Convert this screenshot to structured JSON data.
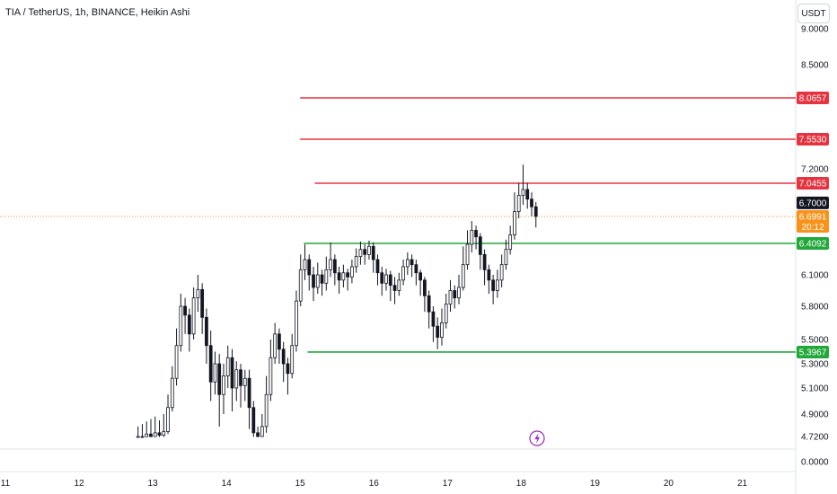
{
  "header": {
    "title": "TIA / TetherUS, 1h, BINANCE, Heikin Ashi"
  },
  "toolbar": {
    "currency_label": "USDT"
  },
  "chart_data": {
    "type": "candlestick",
    "title": "TIA / TetherUS, 1h, BINANCE, Heikin Ashi",
    "x_ticks": [
      11,
      12,
      13,
      14,
      15,
      16,
      17,
      18,
      19,
      20,
      21
    ],
    "x_range": [
      11,
      21.9
    ],
    "y_ticks": [
      "9.0000",
      "8.5000",
      "7.2000",
      "6.1000",
      "5.8000",
      "5.5000",
      "5.3000",
      "5.1000",
      "4.9000",
      "4.7200",
      "0.0000"
    ],
    "horizontal_levels": [
      {
        "value": "8.0657",
        "color": "#e5333f",
        "x_start": 15.0
      },
      {
        "value": "7.5530",
        "color": "#e5333f",
        "x_start": 15.0
      },
      {
        "value": "7.0455",
        "color": "#e5333f",
        "x_start": 15.2
      },
      {
        "value": "6.4092",
        "color": "#22a83a",
        "x_start": 15.05
      },
      {
        "value": "5.3967",
        "color": "#22a83a",
        "x_start": 15.1
      }
    ],
    "current": {
      "price": "6.6991",
      "countdown": "20:12",
      "color": "#f7931a"
    },
    "last_close": {
      "price": "6.7000",
      "color": "#131722"
    },
    "candles_first_x": 12.8,
    "candles_last_x": 18.2,
    "candles": [
      [
        4.7,
        4.72,
        4.62,
        4.8
      ],
      [
        4.72,
        4.69,
        4.6,
        4.82
      ],
      [
        4.69,
        4.74,
        4.62,
        4.84
      ],
      [
        4.74,
        4.71,
        4.6,
        4.86
      ],
      [
        4.71,
        4.75,
        4.64,
        4.88
      ],
      [
        4.75,
        4.73,
        4.63,
        4.85
      ],
      [
        4.73,
        4.76,
        4.66,
        4.9
      ],
      [
        4.76,
        4.95,
        4.74,
        5.05
      ],
      [
        4.95,
        5.18,
        4.92,
        5.28
      ],
      [
        5.18,
        5.45,
        5.12,
        5.6
      ],
      [
        5.45,
        5.8,
        5.4,
        5.92
      ],
      [
        5.8,
        5.72,
        5.55,
        5.88
      ],
      [
        5.72,
        5.55,
        5.4,
        5.78
      ],
      [
        5.55,
        5.88,
        5.5,
        5.98
      ],
      [
        5.88,
        5.96,
        5.75,
        6.1
      ],
      [
        5.96,
        5.7,
        5.55,
        6.02
      ],
      [
        5.7,
        5.45,
        5.3,
        5.78
      ],
      [
        5.45,
        5.15,
        5.0,
        5.58
      ],
      [
        5.15,
        5.3,
        5.05,
        5.4
      ],
      [
        5.3,
        5.05,
        4.8,
        5.38
      ],
      [
        5.05,
        5.2,
        4.9,
        5.3
      ],
      [
        5.2,
        5.35,
        5.1,
        5.45
      ],
      [
        5.35,
        5.1,
        4.92,
        5.42
      ],
      [
        5.1,
        5.25,
        5.0,
        5.32
      ],
      [
        5.25,
        5.12,
        4.95,
        5.3
      ],
      [
        5.12,
        5.18,
        5.0,
        5.25
      ],
      [
        5.18,
        4.95,
        4.78,
        5.25
      ],
      [
        4.95,
        4.75,
        4.65,
        5.0
      ],
      [
        4.75,
        4.72,
        4.62,
        4.8
      ],
      [
        4.72,
        4.8,
        4.64,
        4.9
      ],
      [
        4.8,
        5.05,
        4.75,
        5.2
      ],
      [
        5.05,
        5.35,
        5.0,
        5.5
      ],
      [
        5.35,
        5.55,
        5.3,
        5.65
      ],
      [
        5.55,
        5.42,
        5.3,
        5.6
      ],
      [
        5.42,
        5.3,
        5.15,
        5.48
      ],
      [
        5.3,
        5.22,
        5.05,
        5.35
      ],
      [
        5.22,
        5.45,
        5.18,
        5.55
      ],
      [
        5.45,
        5.85,
        5.4,
        5.95
      ],
      [
        5.85,
        6.15,
        5.8,
        6.3
      ],
      [
        6.15,
        6.25,
        6.05,
        6.4
      ],
      [
        6.25,
        6.1,
        5.95,
        6.3
      ],
      [
        6.1,
        5.98,
        5.85,
        6.18
      ],
      [
        5.98,
        6.1,
        5.92,
        6.22
      ],
      [
        6.1,
        6.02,
        5.9,
        6.15
      ],
      [
        6.02,
        6.15,
        5.95,
        6.28
      ],
      [
        6.15,
        6.25,
        6.08,
        6.42
      ],
      [
        6.25,
        6.12,
        6.0,
        6.3
      ],
      [
        6.12,
        6.05,
        5.92,
        6.18
      ],
      [
        6.05,
        6.12,
        5.98,
        6.2
      ],
      [
        6.12,
        6.08,
        5.95,
        6.16
      ],
      [
        6.08,
        6.18,
        6.02,
        6.25
      ],
      [
        6.18,
        6.28,
        6.12,
        6.36
      ],
      [
        6.28,
        6.35,
        6.2,
        6.43
      ],
      [
        6.35,
        6.3,
        6.2,
        6.4
      ],
      [
        6.3,
        6.38,
        6.25,
        6.44
      ],
      [
        6.38,
        6.25,
        6.12,
        6.42
      ],
      [
        6.25,
        6.12,
        6.0,
        6.3
      ],
      [
        6.12,
        6.02,
        5.9,
        6.18
      ],
      [
        6.02,
        6.1,
        5.95,
        6.16
      ],
      [
        6.1,
        6.0,
        5.85,
        6.14
      ],
      [
        6.0,
        5.95,
        5.82,
        6.08
      ],
      [
        5.95,
        6.05,
        5.9,
        6.12
      ],
      [
        6.05,
        6.18,
        6.0,
        6.25
      ],
      [
        6.18,
        6.25,
        6.1,
        6.32
      ],
      [
        6.25,
        6.2,
        6.08,
        6.3
      ],
      [
        6.2,
        6.12,
        6.0,
        6.25
      ],
      [
        6.12,
        6.05,
        5.9,
        6.15
      ],
      [
        6.05,
        5.9,
        5.75,
        6.08
      ],
      [
        5.9,
        5.75,
        5.6,
        5.95
      ],
      [
        5.75,
        5.62,
        5.48,
        5.8
      ],
      [
        5.62,
        5.52,
        5.42,
        5.7
      ],
      [
        5.52,
        5.65,
        5.45,
        5.78
      ],
      [
        5.65,
        5.82,
        5.6,
        5.92
      ],
      [
        5.82,
        5.95,
        5.75,
        6.05
      ],
      [
        5.95,
        5.88,
        5.78,
        6.0
      ],
      [
        5.88,
        5.98,
        5.82,
        6.1
      ],
      [
        5.98,
        6.2,
        5.95,
        6.38
      ],
      [
        6.2,
        6.4,
        6.15,
        6.55
      ],
      [
        6.4,
        6.55,
        6.32,
        6.65
      ],
      [
        6.55,
        6.48,
        6.35,
        6.6
      ],
      [
        6.48,
        6.3,
        6.15,
        6.52
      ],
      [
        6.3,
        6.15,
        6.0,
        6.35
      ],
      [
        6.15,
        6.05,
        5.92,
        6.2
      ],
      [
        6.05,
        5.95,
        5.82,
        6.1
      ],
      [
        5.95,
        6.05,
        5.88,
        6.15
      ],
      [
        6.05,
        6.2,
        5.98,
        6.3
      ],
      [
        6.2,
        6.35,
        6.15,
        6.45
      ],
      [
        6.35,
        6.5,
        6.3,
        6.6
      ],
      [
        6.5,
        6.75,
        6.45,
        6.95
      ],
      [
        6.75,
        6.92,
        6.68,
        7.05
      ],
      [
        6.92,
        6.98,
        6.82,
        7.25
      ],
      [
        6.98,
        6.88,
        6.78,
        7.05
      ],
      [
        6.88,
        6.8,
        6.7,
        6.95
      ],
      [
        6.8,
        6.7,
        6.58,
        6.85
      ]
    ]
  }
}
